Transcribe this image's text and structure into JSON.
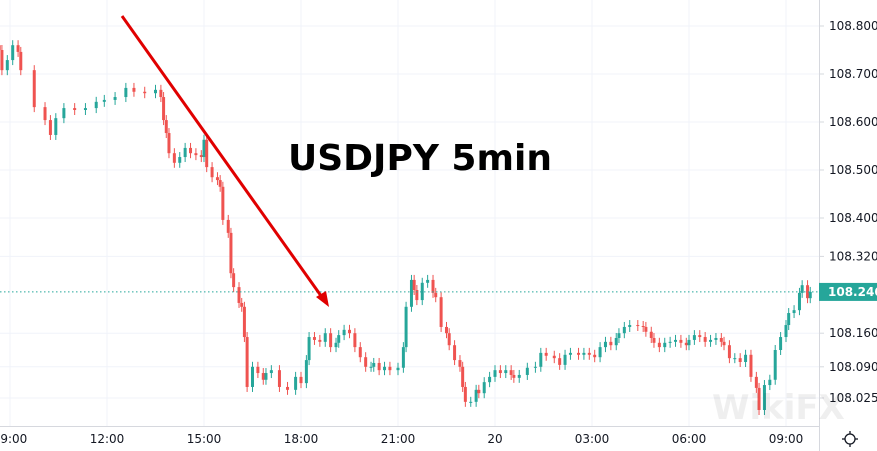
{
  "chart_data": {
    "type": "candlestick",
    "title": "USDJPY 5min",
    "symbol": "USDJPY",
    "interval": "5min",
    "ylim": [
      108.0,
      108.85
    ],
    "y_ticks": [
      "108.800",
      "108.700",
      "108.600",
      "108.500",
      "108.400",
      "108.320",
      "108.160",
      "108.090",
      "108.025"
    ],
    "x_ticks": [
      "09:00",
      "12:00",
      "15:00",
      "18:00",
      "21:00",
      "20",
      "03:00",
      "06:00",
      "09:00"
    ],
    "last_price": "108.246",
    "grid": true,
    "colors": {
      "up": "#26a69a",
      "down": "#ef5350",
      "annotation_arrow": "#e00000",
      "last_price": "#26a69a"
    },
    "annotation": "red trend arrow pointing down from 12:00 high toward 18:00 low",
    "series": [
      [
        "08:40",
        108.75
      ],
      [
        "08:45",
        108.708
      ],
      [
        "08:55",
        108.729
      ],
      [
        "09:05",
        108.76
      ],
      [
        "09:15",
        108.746
      ],
      [
        "09:20",
        108.708
      ],
      [
        "09:45",
        108.631
      ],
      [
        "10:05",
        108.604
      ],
      [
        "10:15",
        108.573
      ],
      [
        "10:25",
        108.608
      ],
      [
        "10:40",
        108.629
      ],
      [
        "11:00",
        108.625
      ],
      [
        "11:20",
        108.629
      ],
      [
        "11:40",
        108.642
      ],
      [
        "11:55",
        108.646
      ],
      [
        "12:15",
        108.652
      ],
      [
        "12:35",
        108.671
      ],
      [
        "12:50",
        108.663
      ],
      [
        "13:10",
        108.66
      ],
      [
        "13:30",
        108.667
      ],
      [
        "13:40",
        108.652
      ],
      [
        "13:45",
        108.604
      ],
      [
        "13:50",
        108.577
      ],
      [
        "13:55",
        108.535
      ],
      [
        "14:05",
        108.515
      ],
      [
        "14:15",
        108.527
      ],
      [
        "14:25",
        108.546
      ],
      [
        "14:35",
        108.535
      ],
      [
        "14:45",
        108.531
      ],
      [
        "14:55",
        108.527
      ],
      [
        "15:00",
        108.563
      ],
      [
        "15:05",
        108.506
      ],
      [
        "15:15",
        108.485
      ],
      [
        "15:25",
        108.479
      ],
      [
        "15:30",
        108.465
      ],
      [
        "15:35",
        108.396
      ],
      [
        "15:45",
        108.369
      ],
      [
        "15:50",
        108.285
      ],
      [
        "15:55",
        108.256
      ],
      [
        "16:05",
        108.223
      ],
      [
        "16:10",
        108.215
      ],
      [
        "16:15",
        108.152
      ],
      [
        "16:20",
        108.048
      ],
      [
        "16:30",
        108.09
      ],
      [
        "16:40",
        108.077
      ],
      [
        "16:50",
        108.063
      ],
      [
        "16:55",
        108.077
      ],
      [
        "17:05",
        108.083
      ],
      [
        "17:20",
        108.048
      ],
      [
        "17:35",
        108.042
      ],
      [
        "17:50",
        108.069
      ],
      [
        "18:00",
        108.056
      ],
      [
        "18:10",
        108.104
      ],
      [
        "18:15",
        108.152
      ],
      [
        "18:25",
        108.146
      ],
      [
        "18:35",
        108.142
      ],
      [
        "18:45",
        108.16
      ],
      [
        "18:55",
        108.131
      ],
      [
        "19:05",
        108.14
      ],
      [
        "19:10",
        108.156
      ],
      [
        "19:20",
        108.167
      ],
      [
        "19:30",
        108.16
      ],
      [
        "19:40",
        108.131
      ],
      [
        "19:50",
        108.11
      ],
      [
        "20:00",
        108.09
      ],
      [
        "20:10",
        108.09
      ],
      [
        "20:15",
        108.098
      ],
      [
        "20:25",
        108.083
      ],
      [
        "20:35",
        108.09
      ],
      [
        "20:45",
        108.083
      ],
      [
        "21:00",
        108.088
      ],
      [
        "21:10",
        108.131
      ],
      [
        "21:15",
        108.215
      ],
      [
        "21:25",
        108.271
      ],
      [
        "21:30",
        108.25
      ],
      [
        "21:35",
        108.229
      ],
      [
        "21:45",
        108.265
      ],
      [
        "21:55",
        108.271
      ],
      [
        "22:05",
        108.244
      ],
      [
        "22:10",
        108.235
      ],
      [
        "22:20",
        108.173
      ],
      [
        "22:30",
        108.16
      ],
      [
        "22:35",
        108.135
      ],
      [
        "22:45",
        108.104
      ],
      [
        "22:55",
        108.09
      ],
      [
        "23:00",
        108.048
      ],
      [
        "23:05",
        108.017
      ],
      [
        "23:15",
        108.017
      ],
      [
        "23:25",
        108.042
      ],
      [
        "23:30",
        108.035
      ],
      [
        "23:40",
        108.058
      ],
      [
        "23:50",
        108.069
      ],
      [
        "00:00",
        108.083
      ],
      [
        "00:10",
        108.077
      ],
      [
        "00:20",
        108.083
      ],
      [
        "00:30",
        108.073
      ],
      [
        "00:35",
        108.067
      ],
      [
        "00:45",
        108.073
      ],
      [
        "01:00",
        108.088
      ],
      [
        "01:15",
        108.09
      ],
      [
        "01:25",
        108.119
      ],
      [
        "01:35",
        108.113
      ],
      [
        "01:50",
        108.108
      ],
      [
        "02:00",
        108.094
      ],
      [
        "02:10",
        108.115
      ],
      [
        "02:20",
        108.119
      ],
      [
        "02:35",
        108.115
      ],
      [
        "02:45",
        108.119
      ],
      [
        "02:55",
        108.115
      ],
      [
        "03:05",
        108.11
      ],
      [
        "03:15",
        108.131
      ],
      [
        "03:25",
        108.142
      ],
      [
        "03:35",
        108.135
      ],
      [
        "03:45",
        108.15
      ],
      [
        "03:50",
        108.16
      ],
      [
        "04:00",
        108.173
      ],
      [
        "04:10",
        108.177
      ],
      [
        "04:25",
        108.175
      ],
      [
        "04:35",
        108.173
      ],
      [
        "04:40",
        108.163
      ],
      [
        "04:50",
        108.15
      ],
      [
        "04:55",
        108.14
      ],
      [
        "05:05",
        108.131
      ],
      [
        "05:15",
        108.14
      ],
      [
        "05:25",
        108.142
      ],
      [
        "05:35",
        108.146
      ],
      [
        "05:45",
        108.14
      ],
      [
        "05:55",
        108.135
      ],
      [
        "06:00",
        108.146
      ],
      [
        "06:10",
        108.156
      ],
      [
        "06:20",
        108.152
      ],
      [
        "06:30",
        108.142
      ],
      [
        "06:40",
        108.146
      ],
      [
        "06:50",
        108.15
      ],
      [
        "07:00",
        108.142
      ],
      [
        "07:05",
        108.135
      ],
      [
        "07:15",
        108.108
      ],
      [
        "07:25",
        108.108
      ],
      [
        "07:35",
        108.1
      ],
      [
        "07:45",
        108.115
      ],
      [
        "07:55",
        108.069
      ],
      [
        "08:05",
        108.046
      ],
      [
        "08:10",
        108.0
      ],
      [
        "08:20",
        108.052
      ],
      [
        "08:30",
        108.063
      ],
      [
        "08:40",
        108.125
      ],
      [
        "08:50",
        108.152
      ],
      [
        "09:00",
        108.177
      ],
      [
        "09:05",
        108.202
      ],
      [
        "09:15",
        108.208
      ],
      [
        "09:25",
        108.244
      ],
      [
        "09:30",
        108.26
      ],
      [
        "09:40",
        108.233
      ],
      [
        "09:45",
        108.246
      ]
    ]
  },
  "watermark": "WikiFX",
  "settings_icon": "gear-icon"
}
